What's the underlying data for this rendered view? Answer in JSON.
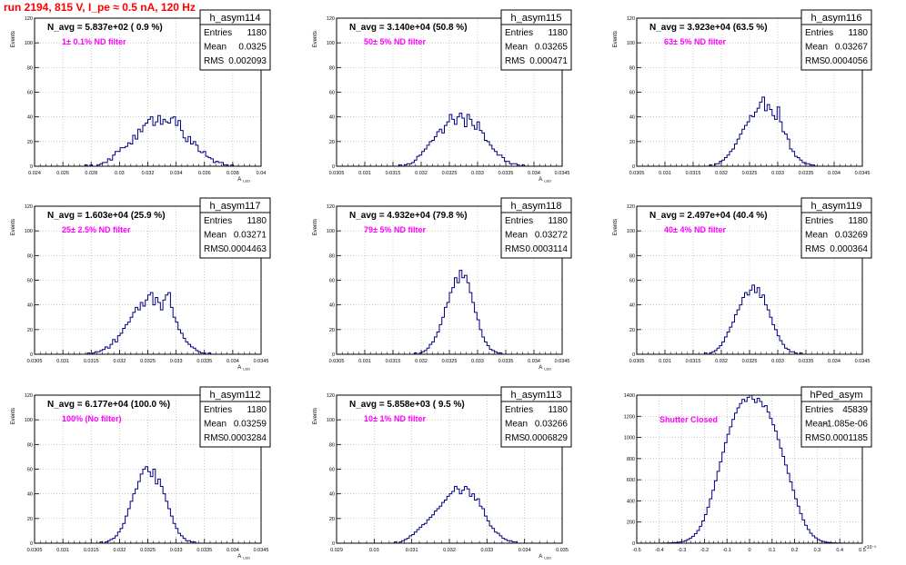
{
  "page_title": "run 2194,   815 V, I_pe ≈ 0.5 nA, 120 Hz",
  "stats_labels": {
    "entries": "Entries",
    "mean": "Mean",
    "rms": "RMS"
  },
  "chart_data": [
    {
      "type": "bar",
      "name": "h_asym114",
      "title": "N_avg = 5.837e+02 ( 0.9 %)",
      "subtitle": "1± 0.1% ND filter",
      "xlabel": "A_LED",
      "ylabel": "Events",
      "xlim": [
        0.024,
        0.04
      ],
      "ylim": [
        0,
        120
      ],
      "xticks": [
        "0.024",
        "0.026",
        "0.028",
        "0.03",
        "0.032",
        "0.034",
        "0.036",
        "0.038",
        "0.04"
      ],
      "yticks": [
        "0",
        "20",
        "40",
        "60",
        "80",
        "100",
        "120"
      ],
      "stats": {
        "entries": "1180",
        "mean": "0.0325",
        "rms": "0.002093"
      },
      "values": [
        0,
        0,
        0,
        0,
        0,
        0,
        0,
        0,
        0,
        0,
        0,
        0,
        0,
        0,
        0,
        0,
        0,
        0,
        0,
        0,
        1,
        0,
        1,
        0,
        0,
        1,
        2,
        3,
        3,
        6,
        5,
        9,
        12,
        12,
        15,
        15,
        16,
        19,
        18,
        25,
        22,
        30,
        28,
        33,
        35,
        38,
        40,
        33,
        36,
        41,
        34,
        38,
        36,
        35,
        39,
        40,
        33,
        37,
        29,
        23,
        20,
        24,
        18,
        20,
        17,
        12,
        11,
        12,
        8,
        7,
        6,
        3,
        4,
        3,
        3,
        1,
        1,
        0,
        1,
        0,
        0,
        0,
        0,
        0,
        0,
        0,
        0,
        0,
        0,
        0
      ]
    },
    {
      "type": "bar",
      "name": "h_asym115",
      "title": "N_avg = 3.140e+04 (50.8 %)",
      "subtitle": "50± 5% ND filter",
      "xlabel": "A_LED",
      "ylabel": "Events",
      "xlim": [
        0.0305,
        0.0345
      ],
      "ylim": [
        0,
        120
      ],
      "xticks": [
        "0.0305",
        "0.031",
        "0.0315",
        "0.032",
        "0.0325",
        "0.033",
        "0.0335",
        "0.034",
        "0.0345"
      ],
      "yticks": [
        "0",
        "20",
        "40",
        "60",
        "80",
        "100",
        "120"
      ],
      "stats": {
        "entries": "1180",
        "mean": "0.03265",
        "rms": "0.000471"
      },
      "values": [
        0,
        0,
        0,
        0,
        0,
        0,
        0,
        0,
        0,
        0,
        0,
        0,
        0,
        0,
        0,
        0,
        0,
        0,
        0,
        0,
        0,
        0,
        0,
        0,
        0,
        1,
        0,
        1,
        2,
        2,
        3,
        5,
        8,
        9,
        12,
        14,
        17,
        20,
        21,
        24,
        28,
        30,
        27,
        33,
        36,
        42,
        38,
        34,
        40,
        43,
        39,
        32,
        42,
        38,
        33,
        30,
        36,
        29,
        27,
        21,
        20,
        17,
        14,
        12,
        9,
        9,
        7,
        4,
        4,
        2,
        2,
        2,
        1,
        0,
        1,
        0,
        0,
        0,
        0,
        0,
        0,
        0,
        0,
        0,
        0,
        0,
        0,
        0,
        0,
        0
      ]
    },
    {
      "type": "bar",
      "name": "h_asym116",
      "title": "N_avg = 3.923e+04 (63.5 %)",
      "subtitle": "63± 5% ND filter",
      "xlabel": "",
      "ylabel": "Events",
      "xlim": [
        0.0305,
        0.0345
      ],
      "ylim": [
        0,
        120
      ],
      "xticks": [
        "0.0305",
        "0.031",
        "0.0315",
        "0.032",
        "0.0325",
        "0.033",
        "0.0335",
        "0.034",
        "0.0345"
      ],
      "yticks": [
        "0",
        "20",
        "40",
        "60",
        "80",
        "100",
        "120"
      ],
      "stats": {
        "entries": "1180",
        "mean": "0.03267",
        "rms": "0.0004056"
      },
      "values": [
        0,
        0,
        0,
        0,
        0,
        0,
        0,
        0,
        0,
        0,
        0,
        0,
        0,
        0,
        0,
        0,
        0,
        0,
        0,
        0,
        0,
        0,
        0,
        0,
        0,
        0,
        0,
        0,
        0,
        1,
        0,
        2,
        2,
        4,
        5,
        7,
        9,
        12,
        14,
        18,
        22,
        26,
        30,
        33,
        36,
        41,
        40,
        44,
        47,
        52,
        56,
        45,
        50,
        46,
        41,
        38,
        48,
        36,
        28,
        26,
        22,
        14,
        12,
        8,
        7,
        5,
        3,
        2,
        2,
        1,
        1,
        0,
        0,
        0,
        0,
        0,
        0,
        0,
        0,
        0,
        0,
        0,
        0,
        0,
        0,
        0,
        0,
        0,
        0,
        0
      ]
    },
    {
      "type": "bar",
      "name": "h_asym117",
      "title": "N_avg = 1.603e+04 (25.9 %)",
      "subtitle": "25± 2.5% ND filter",
      "xlabel": "A_LED",
      "ylabel": "Events",
      "xlim": [
        0.0305,
        0.0345
      ],
      "ylim": [
        0,
        120
      ],
      "xticks": [
        "0.0305",
        "0.031",
        "0.0315",
        "0.032",
        "0.0325",
        "0.033",
        "0.0335",
        "0.034",
        "0.0345"
      ],
      "yticks": [
        "0",
        "20",
        "40",
        "60",
        "80",
        "100",
        "120"
      ],
      "stats": {
        "entries": "1180",
        "mean": "0.03271",
        "rms": "0.0004463"
      },
      "values": [
        0,
        0,
        0,
        0,
        0,
        0,
        0,
        0,
        0,
        0,
        0,
        0,
        0,
        0,
        0,
        0,
        0,
        0,
        0,
        0,
        0,
        1,
        0,
        1,
        2,
        2,
        3,
        4,
        6,
        5,
        8,
        12,
        10,
        15,
        17,
        21,
        24,
        26,
        30,
        34,
        38,
        36,
        42,
        39,
        44,
        48,
        50,
        40,
        46,
        42,
        36,
        44,
        48,
        50,
        38,
        30,
        26,
        20,
        17,
        13,
        10,
        8,
        6,
        5,
        3,
        2,
        1,
        1,
        0,
        1,
        0,
        0,
        0,
        0,
        0,
        0,
        0,
        0,
        0,
        0,
        0,
        0,
        0,
        0,
        0,
        0,
        0,
        0,
        0,
        0
      ]
    },
    {
      "type": "bar",
      "name": "h_asym118",
      "title": "N_avg = 4.932e+04 (79.8 %)",
      "subtitle": "79± 5% ND filter",
      "xlabel": "A_LED",
      "ylabel": "Events",
      "xlim": [
        0.0305,
        0.0345
      ],
      "ylim": [
        0,
        120
      ],
      "xticks": [
        "0.0305",
        "0.031",
        "0.0315",
        "0.032",
        "0.0325",
        "0.033",
        "0.0335",
        "0.034",
        "0.0345"
      ],
      "yticks": [
        "0",
        "20",
        "40",
        "60",
        "80",
        "100",
        "120"
      ],
      "stats": {
        "entries": "1180",
        "mean": "0.03272",
        "rms": "0.0003114"
      },
      "values": [
        0,
        0,
        0,
        0,
        0,
        0,
        0,
        0,
        0,
        0,
        0,
        0,
        0,
        0,
        0,
        0,
        0,
        0,
        0,
        0,
        0,
        0,
        0,
        0,
        0,
        0,
        0,
        0,
        0,
        0,
        0,
        1,
        0,
        1,
        2,
        3,
        5,
        8,
        10,
        14,
        18,
        24,
        30,
        38,
        42,
        50,
        54,
        62,
        58,
        68,
        62,
        64,
        58,
        50,
        42,
        34,
        28,
        20,
        14,
        10,
        7,
        4,
        3,
        2,
        1,
        1,
        0,
        0,
        0,
        0,
        0,
        0,
        0,
        0,
        0,
        0,
        0,
        0,
        0,
        0,
        0,
        0,
        0,
        0,
        0,
        0,
        0,
        0,
        0,
        0
      ]
    },
    {
      "type": "bar",
      "name": "h_asym119",
      "title": "N_avg = 2.497e+04 (40.4 %)",
      "subtitle": "40± 4% ND filter",
      "xlabel": "",
      "ylabel": "Events",
      "xlim": [
        0.0305,
        0.0345
      ],
      "ylim": [
        0,
        120
      ],
      "xticks": [
        "0.0305",
        "0.031",
        "0.0315",
        "0.032",
        "0.0325",
        "0.033",
        "0.0335",
        "0.034",
        "0.0345"
      ],
      "yticks": [
        "0",
        "20",
        "40",
        "60",
        "80",
        "100",
        "120"
      ],
      "stats": {
        "entries": "1180",
        "mean": "0.03269",
        "rms": "0.000364"
      },
      "values": [
        0,
        0,
        0,
        0,
        0,
        0,
        0,
        0,
        0,
        0,
        0,
        0,
        0,
        0,
        0,
        0,
        0,
        0,
        0,
        0,
        0,
        0,
        0,
        0,
        0,
        0,
        0,
        1,
        0,
        1,
        2,
        3,
        5,
        7,
        10,
        14,
        18,
        22,
        26,
        32,
        36,
        40,
        46,
        50,
        48,
        52,
        56,
        50,
        54,
        46,
        48,
        40,
        36,
        30,
        24,
        20,
        15,
        11,
        8,
        5,
        4,
        2,
        2,
        1,
        0,
        1,
        0,
        0,
        0,
        0,
        0,
        0,
        0,
        0,
        0,
        0,
        0,
        0,
        0,
        0,
        0,
        0,
        0,
        0,
        0,
        0,
        0,
        0,
        0,
        0
      ]
    },
    {
      "type": "bar",
      "name": "h_asym112",
      "title": "N_avg = 6.177e+04 (100.0 %)",
      "subtitle": "100% (No filter)",
      "xlabel": "A_LED",
      "ylabel": "Events",
      "xlim": [
        0.0305,
        0.0345
      ],
      "ylim": [
        0,
        120
      ],
      "xticks": [
        "0.0305",
        "0.031",
        "0.0315",
        "0.032",
        "0.0325",
        "0.033",
        "0.0335",
        "0.034",
        "0.0345"
      ],
      "yticks": [
        "0",
        "20",
        "40",
        "60",
        "80",
        "100",
        "120"
      ],
      "stats": {
        "entries": "1180",
        "mean": "0.03259",
        "rms": "0.0003284"
      },
      "values": [
        0,
        0,
        0,
        0,
        0,
        0,
        0,
        0,
        0,
        0,
        0,
        0,
        0,
        0,
        0,
        0,
        0,
        0,
        0,
        0,
        0,
        0,
        0,
        0,
        0,
        0,
        1,
        0,
        1,
        2,
        3,
        4,
        6,
        9,
        12,
        16,
        22,
        28,
        34,
        40,
        44,
        50,
        56,
        60,
        62,
        58,
        54,
        60,
        48,
        52,
        46,
        40,
        34,
        28,
        22,
        16,
        12,
        8,
        6,
        4,
        2,
        2,
        1,
        1,
        0,
        0,
        0,
        0,
        0,
        0,
        0,
        0,
        0,
        0,
        0,
        0,
        0,
        0,
        0,
        0,
        0,
        0,
        0,
        0,
        0,
        0,
        0,
        0,
        0,
        0
      ]
    },
    {
      "type": "bar",
      "name": "h_asym113",
      "title": "N_avg = 5.858e+03 ( 9.5 %)",
      "subtitle": "10± 1% ND filter",
      "xlabel": "A_LED",
      "ylabel": "Events",
      "xlim": [
        0.029,
        0.035
      ],
      "ylim": [
        0,
        120
      ],
      "xticks": [
        "0.029",
        "0.03",
        "0.031",
        "0.032",
        "0.033",
        "0.034",
        "0.035"
      ],
      "yticks": [
        "0",
        "20",
        "40",
        "60",
        "80",
        "100",
        "120"
      ],
      "stats": {
        "entries": "1180",
        "mean": "0.03266",
        "rms": "0.0006829"
      },
      "values": [
        0,
        0,
        0,
        0,
        0,
        0,
        0,
        0,
        0,
        0,
        0,
        0,
        0,
        0,
        0,
        0,
        0,
        0,
        0,
        0,
        0,
        0,
        0,
        1,
        0,
        1,
        2,
        3,
        4,
        6,
        7,
        9,
        11,
        13,
        15,
        16,
        19,
        21,
        23,
        26,
        28,
        30,
        33,
        35,
        38,
        40,
        42,
        46,
        44,
        40,
        43,
        46,
        44,
        38,
        40,
        35,
        36,
        30,
        28,
        22,
        18,
        14,
        12,
        9,
        8,
        6,
        4,
        3,
        2,
        2,
        1,
        1,
        0,
        0,
        0,
        0,
        0,
        0,
        0,
        0,
        0,
        0,
        0,
        0,
        0,
        0,
        0,
        0,
        0,
        0
      ]
    },
    {
      "type": "bar",
      "name": "hPed_asym",
      "title": "",
      "subtitle": "Shutter Closed",
      "xlabel": "",
      "ylabel": "",
      "xlim": [
        -0.5,
        0.5
      ],
      "ylim": [
        0,
        1400
      ],
      "x_exponent": "×10⁻³",
      "xticks": [
        "-0.5",
        "-0.4",
        "-0.3",
        "-0.2",
        "-0.1",
        "0",
        "0.1",
        "0.2",
        "0.3",
        "0.4",
        "0.5"
      ],
      "yticks": [
        "0",
        "200",
        "400",
        "600",
        "800",
        "1000",
        "1200",
        "1400"
      ],
      "stats": {
        "entries": "45839",
        "mean": "-1.085e-06",
        "rms": "0.0001185"
      },
      "values": [
        0,
        0,
        0,
        0,
        0,
        0,
        0,
        0,
        0,
        0,
        1,
        1,
        2,
        3,
        4,
        6,
        8,
        12,
        16,
        24,
        34,
        48,
        66,
        90,
        120,
        160,
        210,
        270,
        340,
        420,
        500,
        590,
        680,
        770,
        860,
        950,
        1030,
        1100,
        1170,
        1230,
        1280,
        1320,
        1360,
        1340,
        1380,
        1400,
        1360,
        1330,
        1370,
        1340,
        1290,
        1300,
        1240,
        1180,
        1120,
        1060,
        980,
        900,
        820,
        740,
        660,
        580,
        500,
        420,
        350,
        280,
        220,
        170,
        130,
        95,
        70,
        50,
        34,
        24,
        16,
        10,
        7,
        4,
        3,
        2,
        1,
        1,
        0,
        0,
        0,
        0,
        0,
        0,
        0,
        0
      ]
    }
  ]
}
